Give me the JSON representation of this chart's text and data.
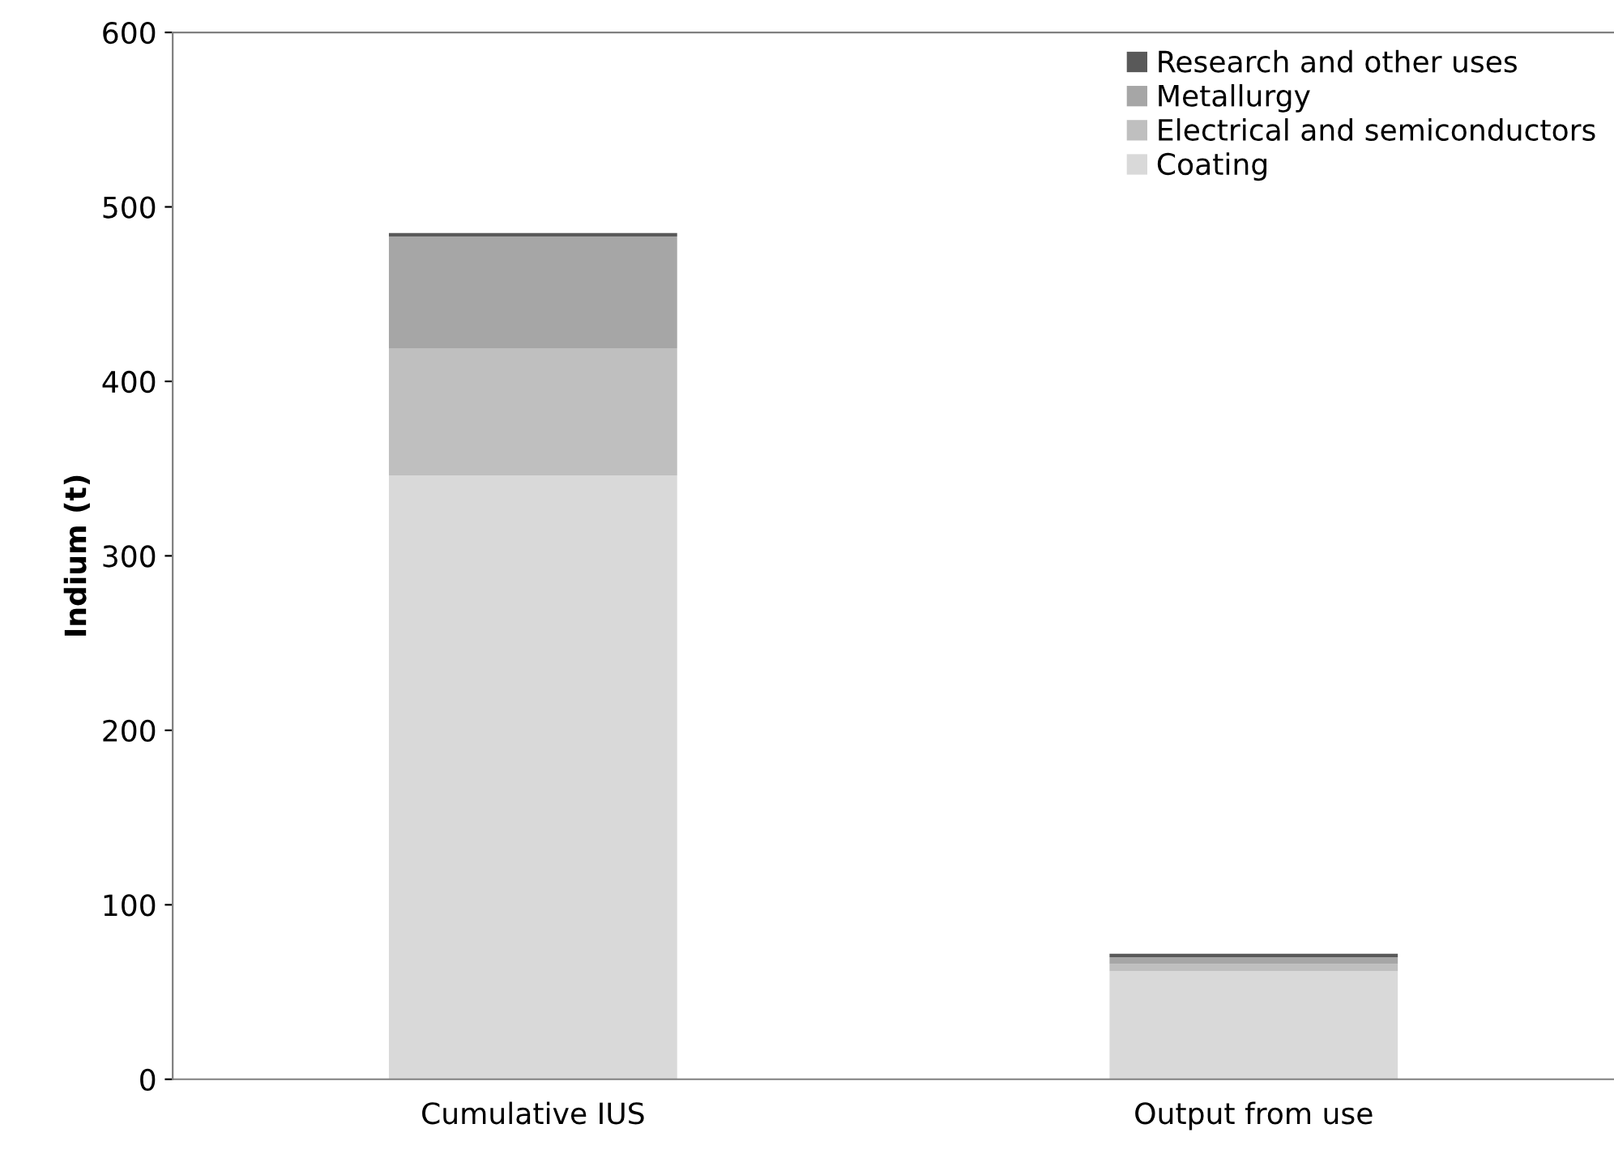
{
  "chart_data": {
    "type": "bar",
    "ylabel": "Indium (t)",
    "categories": [
      "Cumulative IUS",
      "Output from use"
    ],
    "stacked": true,
    "series": [
      {
        "name": "Coating",
        "color": "#d9d9d9",
        "values": [
          346,
          62
        ]
      },
      {
        "name": "Electrical and semiconductors",
        "color": "#bfbfbf",
        "values": [
          73,
          4
        ]
      },
      {
        "name": "Metallurgy",
        "color": "#a6a6a6",
        "values": [
          64,
          4
        ]
      },
      {
        "name": "Research and other uses",
        "color": "#595959",
        "values": [
          2,
          2
        ]
      }
    ],
    "ylim": [
      0,
      600
    ],
    "yticks": [
      0,
      100,
      200,
      300,
      400,
      500,
      600
    ],
    "grid": false,
    "legend": "top right"
  }
}
